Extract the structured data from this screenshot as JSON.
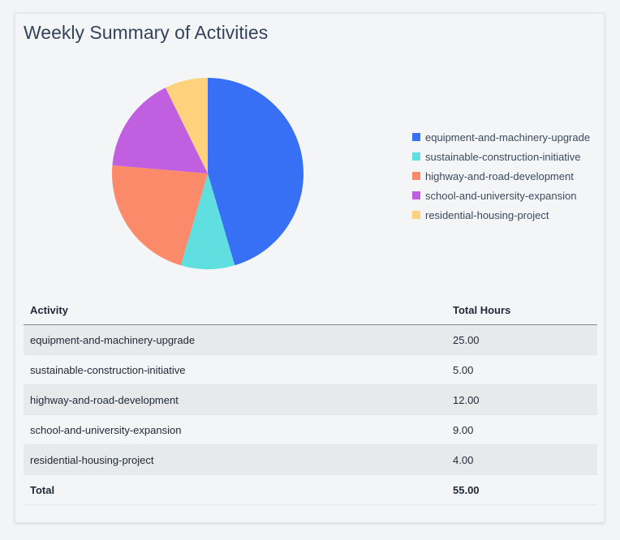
{
  "title": "Weekly Summary of Activities",
  "chart_data": {
    "type": "pie",
    "categories": [
      "equipment-and-machinery-upgrade",
      "sustainable-construction-initiative",
      "highway-and-road-development",
      "school-and-university-expansion",
      "residential-housing-project"
    ],
    "values": [
      25,
      5,
      12,
      9,
      4
    ],
    "colors": [
      "#3770f4",
      "#5fdfe0",
      "#fb8a6b",
      "#c05fe0",
      "#fed27c"
    ],
    "legend_position": "right"
  },
  "table": {
    "headers": [
      "Activity",
      "Total Hours"
    ],
    "rows": [
      [
        "equipment-and-machinery-upgrade",
        "25.00"
      ],
      [
        "sustainable-construction-initiative",
        "5.00"
      ],
      [
        "highway-and-road-development",
        "12.00"
      ],
      [
        "school-and-university-expansion",
        "9.00"
      ],
      [
        "residential-housing-project",
        "4.00"
      ]
    ],
    "total_label": "Total",
    "total_value": "55.00"
  }
}
